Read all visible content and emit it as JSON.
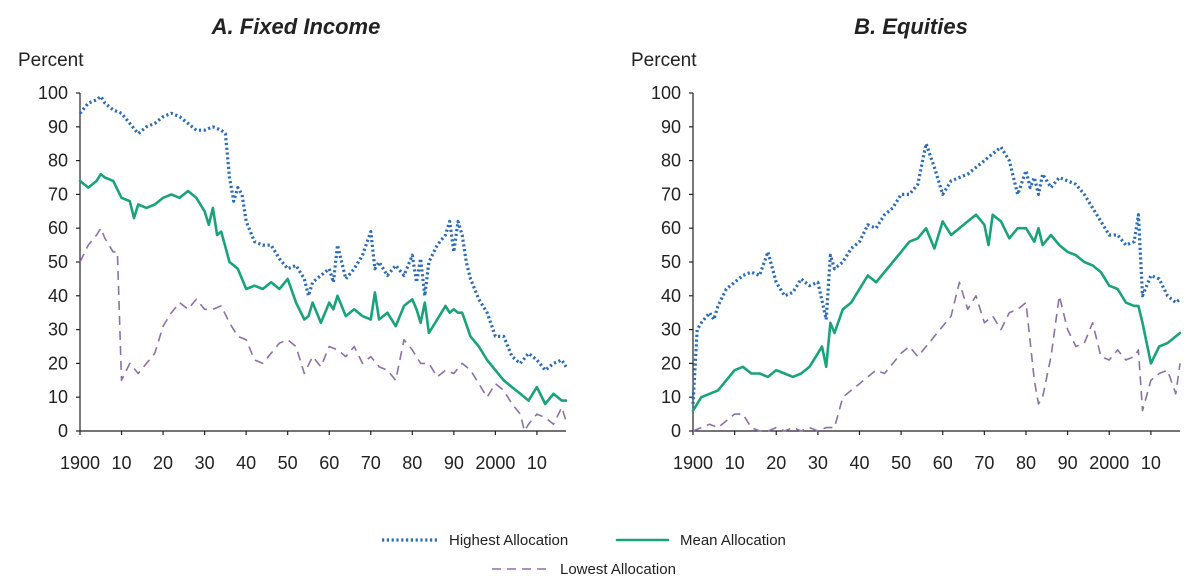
{
  "colors": {
    "highest": "#2e6db4",
    "mean": "#1aa37a",
    "lowest": "#8a72a8",
    "axis": "#222222"
  },
  "legend": {
    "items": [
      {
        "key": "highest",
        "label": "Highest Allocation",
        "style": "dotted"
      },
      {
        "key": "mean",
        "label": "Mean Allocation",
        "style": "solid"
      },
      {
        "key": "lowest",
        "label": "Lowest Allocation",
        "style": "dashed"
      }
    ]
  },
  "chart_data": [
    {
      "type": "line",
      "title": "A. Fixed Income",
      "ylabel": "Percent",
      "xlabel": "",
      "ylim": [
        0,
        100
      ],
      "xlim": [
        1900,
        2017
      ],
      "yticks": [
        0,
        10,
        20,
        30,
        40,
        50,
        60,
        70,
        80,
        90,
        100
      ],
      "xticks": [
        {
          "value": 1900,
          "label": "1900"
        },
        {
          "value": 1910,
          "label": "10"
        },
        {
          "value": 1920,
          "label": "20"
        },
        {
          "value": 1930,
          "label": "30"
        },
        {
          "value": 1940,
          "label": "40"
        },
        {
          "value": 1950,
          "label": "50"
        },
        {
          "value": 1960,
          "label": "60"
        },
        {
          "value": 1970,
          "label": "70"
        },
        {
          "value": 1980,
          "label": "80"
        },
        {
          "value": 1990,
          "label": "90"
        },
        {
          "value": 2000,
          "label": "2000"
        },
        {
          "value": 2010,
          "label": "10"
        }
      ],
      "grid": false,
      "legend": "bottom-center",
      "series": [
        {
          "name": "Highest Allocation",
          "key": "highest",
          "x": [
            1900,
            1902,
            1904,
            1905,
            1906,
            1908,
            1910,
            1912,
            1914,
            1916,
            1918,
            1920,
            1922,
            1924,
            1926,
            1928,
            1930,
            1932,
            1934,
            1935,
            1936,
            1937,
            1938,
            1939,
            1940,
            1942,
            1944,
            1946,
            1948,
            1950,
            1952,
            1954,
            1955,
            1956,
            1958,
            1960,
            1961,
            1962,
            1964,
            1966,
            1968,
            1970,
            1971,
            1972,
            1974,
            1976,
            1978,
            1980,
            1981,
            1982,
            1983,
            1984,
            1986,
            1988,
            1989,
            1990,
            1991,
            1992,
            1993,
            1994,
            1996,
            1998,
            2000,
            2002,
            2004,
            2006,
            2008,
            2010,
            2012,
            2014,
            2016,
            2017
          ],
          "y": [
            94,
            97,
            98,
            99,
            97,
            95,
            94,
            91,
            88,
            90,
            91,
            93,
            94,
            93,
            91,
            89,
            89,
            90,
            89,
            88,
            75,
            68,
            72,
            70,
            62,
            56,
            55,
            55,
            51,
            48,
            49,
            45,
            40,
            44,
            46,
            48,
            44,
            55,
            45,
            48,
            52,
            59,
            48,
            50,
            46,
            49,
            46,
            52,
            44,
            51,
            40,
            50,
            55,
            58,
            62,
            53,
            62,
            58,
            50,
            45,
            39,
            35,
            28,
            28,
            22,
            20,
            23,
            21,
            18,
            20,
            21,
            19
          ]
        },
        {
          "name": "Mean Allocation",
          "key": "mean",
          "x": [
            1900,
            1902,
            1904,
            1905,
            1906,
            1908,
            1910,
            1912,
            1913,
            1914,
            1916,
            1918,
            1920,
            1922,
            1924,
            1926,
            1928,
            1930,
            1931,
            1932,
            1933,
            1934,
            1936,
            1938,
            1940,
            1942,
            1944,
            1946,
            1948,
            1950,
            1952,
            1954,
            1955,
            1956,
            1958,
            1960,
            1961,
            1962,
            1964,
            1966,
            1968,
            1970,
            1971,
            1972,
            1974,
            1976,
            1978,
            1980,
            1981,
            1982,
            1983,
            1984,
            1986,
            1988,
            1989,
            1990,
            1991,
            1992,
            1994,
            1996,
            1998,
            2000,
            2002,
            2004,
            2006,
            2008,
            2010,
            2012,
            2014,
            2016,
            2017
          ],
          "y": [
            74,
            72,
            74,
            76,
            75,
            74,
            69,
            68,
            63,
            67,
            66,
            67,
            69,
            70,
            69,
            71,
            69,
            65,
            61,
            66,
            58,
            59,
            50,
            48,
            42,
            43,
            42,
            44,
            42,
            45,
            38,
            33,
            34,
            38,
            32,
            38,
            36,
            40,
            34,
            36,
            34,
            33,
            41,
            33,
            35,
            31,
            37,
            39,
            36,
            32,
            38,
            29,
            33,
            37,
            35,
            36,
            35,
            35,
            28,
            25,
            21,
            18,
            15,
            13,
            11,
            9,
            13,
            8,
            11,
            9,
            9
          ]
        },
        {
          "name": "Lowest Allocation",
          "key": "lowest",
          "x": [
            1900,
            1902,
            1904,
            1905,
            1906,
            1908,
            1909,
            1910,
            1912,
            1914,
            1916,
            1918,
            1920,
            1922,
            1924,
            1926,
            1928,
            1930,
            1932,
            1934,
            1936,
            1938,
            1940,
            1942,
            1944,
            1946,
            1948,
            1950,
            1952,
            1954,
            1956,
            1958,
            1960,
            1962,
            1964,
            1966,
            1968,
            1970,
            1972,
            1974,
            1976,
            1978,
            1980,
            1982,
            1984,
            1986,
            1988,
            1990,
            1992,
            1994,
            1996,
            1998,
            2000,
            2002,
            2004,
            2006,
            2007,
            2008,
            2010,
            2012,
            2014,
            2016,
            2017
          ],
          "y": [
            50,
            55,
            58,
            60,
            57,
            53,
            53,
            15,
            20,
            17,
            20,
            23,
            31,
            35,
            38,
            36,
            39,
            36,
            36,
            37,
            32,
            28,
            27,
            21,
            20,
            23,
            26,
            27,
            25,
            17,
            22,
            19,
            25,
            24,
            22,
            25,
            20,
            22,
            19,
            18,
            15,
            27,
            24,
            20,
            20,
            16,
            18,
            17,
            20,
            18,
            14,
            10,
            14,
            12,
            8,
            5,
            0,
            2,
            5,
            4,
            2,
            7,
            3
          ]
        }
      ]
    },
    {
      "type": "line",
      "title": "B. Equities",
      "ylabel": "Percent",
      "xlabel": "",
      "ylim": [
        0,
        100
      ],
      "xlim": [
        1900,
        2017
      ],
      "yticks": [
        0,
        10,
        20,
        30,
        40,
        50,
        60,
        70,
        80,
        90,
        100
      ],
      "xticks": [
        {
          "value": 1900,
          "label": "1900"
        },
        {
          "value": 1910,
          "label": "10"
        },
        {
          "value": 1920,
          "label": "20"
        },
        {
          "value": 1930,
          "label": "30"
        },
        {
          "value": 1940,
          "label": "40"
        },
        {
          "value": 1950,
          "label": "50"
        },
        {
          "value": 1960,
          "label": "60"
        },
        {
          "value": 1970,
          "label": "70"
        },
        {
          "value": 1980,
          "label": "80"
        },
        {
          "value": 1990,
          "label": "90"
        },
        {
          "value": 2000,
          "label": "2000"
        },
        {
          "value": 2010,
          "label": "10"
        }
      ],
      "grid": false,
      "legend": "bottom-center",
      "series": [
        {
          "name": "Highest Allocation",
          "key": "highest",
          "x": [
            1900,
            1901,
            1902,
            1904,
            1905,
            1906,
            1908,
            1910,
            1912,
            1914,
            1916,
            1918,
            1920,
            1922,
            1924,
            1926,
            1928,
            1930,
            1932,
            1933,
            1934,
            1936,
            1938,
            1940,
            1942,
            1944,
            1946,
            1948,
            1950,
            1952,
            1954,
            1956,
            1958,
            1960,
            1962,
            1964,
            1966,
            1968,
            1970,
            1972,
            1974,
            1976,
            1978,
            1980,
            1981,
            1982,
            1983,
            1984,
            1986,
            1988,
            1990,
            1992,
            1994,
            1996,
            1998,
            2000,
            2002,
            2004,
            2006,
            2007,
            2008,
            2010,
            2012,
            2014,
            2016,
            2017
          ],
          "y": [
            8,
            30,
            32,
            35,
            33,
            37,
            42,
            44,
            46,
            47,
            46,
            53,
            44,
            40,
            41,
            45,
            43,
            44,
            33,
            52,
            48,
            50,
            54,
            56,
            61,
            60,
            64,
            66,
            70,
            70,
            73,
            85,
            78,
            70,
            74,
            75,
            76,
            78,
            80,
            82,
            84,
            80,
            70,
            77,
            72,
            75,
            70,
            76,
            72,
            75,
            74,
            73,
            70,
            66,
            62,
            58,
            58,
            55,
            56,
            64,
            40,
            46,
            45,
            40,
            38,
            39
          ]
        },
        {
          "name": "Mean Allocation",
          "key": "mean",
          "x": [
            1900,
            1902,
            1904,
            1906,
            1908,
            1910,
            1912,
            1914,
            1916,
            1918,
            1920,
            1922,
            1924,
            1926,
            1928,
            1930,
            1931,
            1932,
            1933,
            1934,
            1936,
            1938,
            1940,
            1942,
            1944,
            1946,
            1948,
            1950,
            1952,
            1954,
            1956,
            1958,
            1960,
            1962,
            1964,
            1966,
            1968,
            1970,
            1971,
            1972,
            1974,
            1976,
            1978,
            1980,
            1982,
            1983,
            1984,
            1986,
            1988,
            1990,
            1992,
            1994,
            1996,
            1998,
            2000,
            2002,
            2004,
            2006,
            2007,
            2008,
            2010,
            2012,
            2014,
            2016,
            2017
          ],
          "y": [
            6,
            10,
            11,
            12,
            15,
            18,
            19,
            17,
            17,
            16,
            18,
            17,
            16,
            17,
            19,
            23,
            25,
            19,
            32,
            29,
            36,
            38,
            42,
            46,
            44,
            47,
            50,
            53,
            56,
            57,
            60,
            54,
            62,
            58,
            60,
            62,
            64,
            61,
            55,
            64,
            62,
            57,
            60,
            60,
            56,
            60,
            55,
            58,
            55,
            53,
            52,
            50,
            49,
            47,
            43,
            42,
            38,
            37,
            37,
            32,
            20,
            25,
            26,
            28,
            29
          ]
        },
        {
          "name": "Lowest Allocation",
          "key": "lowest",
          "x": [
            1900,
            1902,
            1904,
            1906,
            1908,
            1910,
            1912,
            1914,
            1916,
            1918,
            1920,
            1922,
            1924,
            1926,
            1928,
            1930,
            1932,
            1934,
            1936,
            1938,
            1940,
            1942,
            1944,
            1946,
            1948,
            1950,
            1952,
            1954,
            1956,
            1958,
            1960,
            1962,
            1964,
            1966,
            1968,
            1970,
            1972,
            1974,
            1976,
            1978,
            1980,
            1982,
            1983,
            1984,
            1986,
            1988,
            1990,
            1992,
            1994,
            1996,
            1998,
            2000,
            2002,
            2004,
            2006,
            2007,
            2008,
            2010,
            2012,
            2014,
            2016,
            2017
          ],
          "y": [
            0,
            1,
            2,
            1,
            3,
            5,
            5,
            1,
            0,
            0,
            1,
            0,
            1,
            0,
            1,
            0,
            1,
            1,
            10,
            12,
            14,
            16,
            18,
            17,
            20,
            23,
            25,
            22,
            25,
            28,
            31,
            34,
            44,
            36,
            40,
            32,
            34,
            30,
            35,
            36,
            38,
            15,
            8,
            10,
            22,
            40,
            30,
            25,
            26,
            32,
            22,
            21,
            24,
            21,
            22,
            24,
            6,
            15,
            17,
            18,
            11,
            20
          ]
        }
      ]
    }
  ]
}
